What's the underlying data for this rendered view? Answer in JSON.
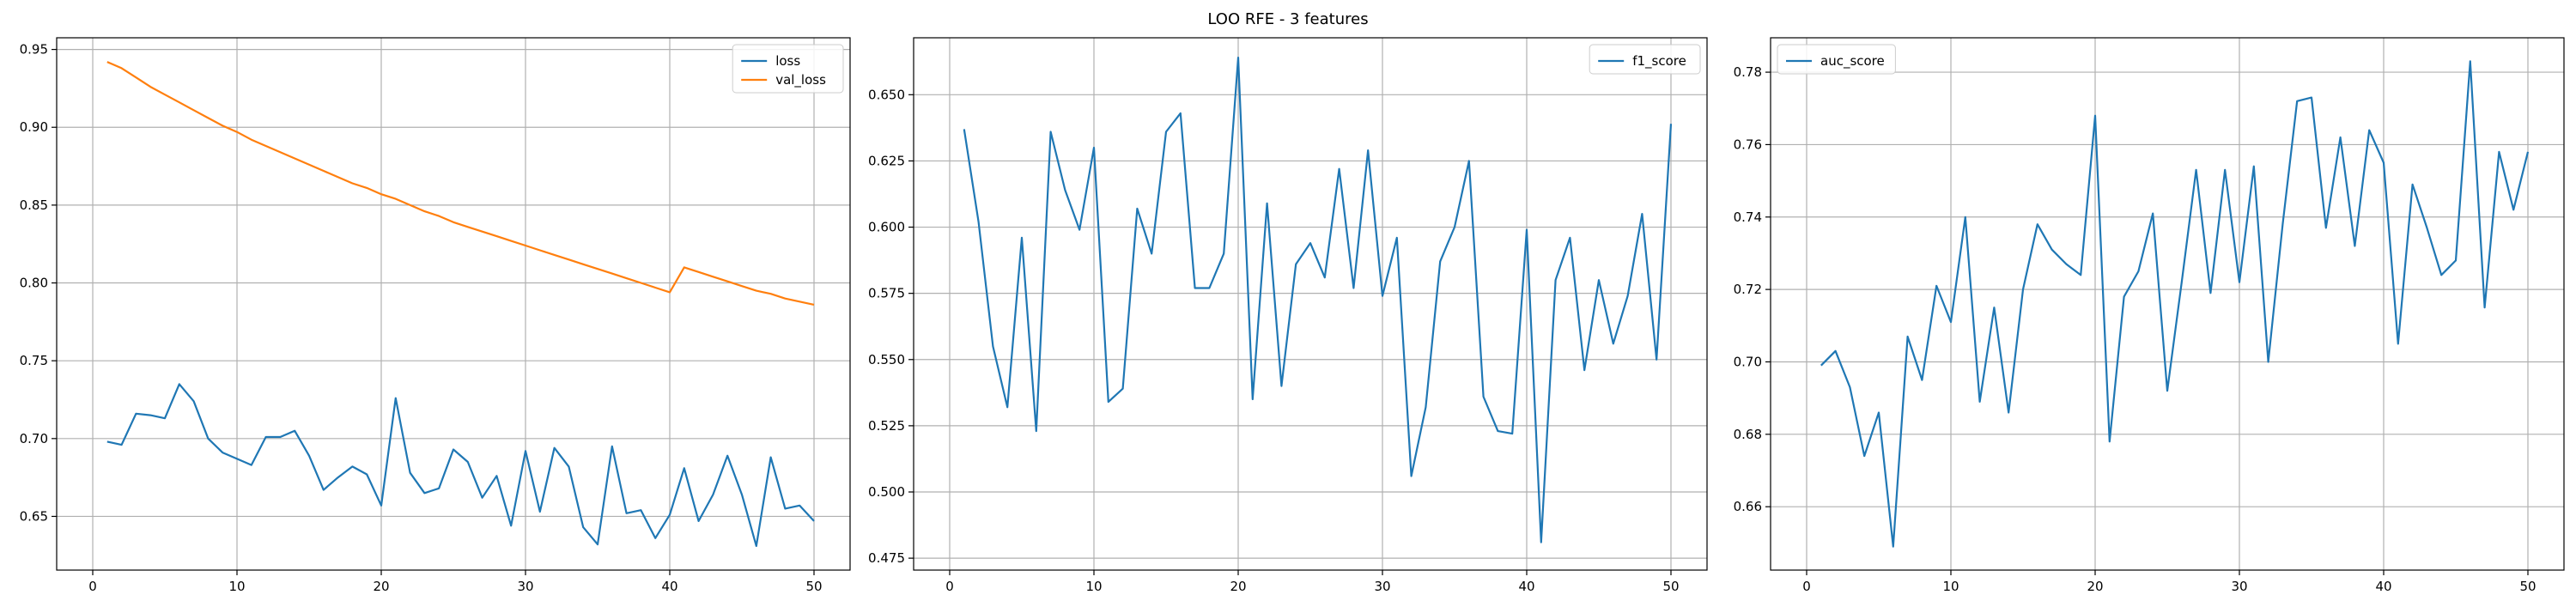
{
  "suptitle": "LOO RFE - 3 features",
  "colors": {
    "blue": "#1f77b4",
    "orange": "#ff7f0e",
    "grid": "#b0b0b0",
    "axis": "#000000"
  },
  "chart_data": [
    {
      "type": "line",
      "title": "",
      "xlabel": "",
      "ylabel": "",
      "xlim": [
        -2.5,
        52.5
      ],
      "ylim": [
        0.6155,
        0.9575
      ],
      "xticks": [
        0,
        10,
        20,
        30,
        40,
        50
      ],
      "yticks": [
        0.65,
        0.7,
        0.75,
        0.8,
        0.85,
        0.9,
        0.95
      ],
      "ytick_decimals": 2,
      "grid": true,
      "legend": "top-right",
      "x": [
        1,
        2,
        3,
        4,
        5,
        6,
        7,
        8,
        9,
        10,
        11,
        12,
        13,
        14,
        15,
        16,
        17,
        18,
        19,
        20,
        21,
        22,
        23,
        24,
        25,
        26,
        27,
        28,
        29,
        30,
        31,
        32,
        33,
        34,
        35,
        36,
        37,
        38,
        39,
        40,
        41,
        42,
        43,
        44,
        45,
        46,
        47,
        48,
        49,
        50
      ],
      "series": [
        {
          "name": "loss",
          "color": "#1f77b4",
          "values": [
            0.698,
            0.696,
            0.716,
            0.715,
            0.713,
            0.735,
            0.724,
            0.7,
            0.691,
            0.687,
            0.683,
            0.701,
            0.701,
            0.705,
            0.689,
            0.667,
            0.675,
            0.682,
            0.677,
            0.657,
            0.726,
            0.678,
            0.665,
            0.668,
            0.693,
            0.685,
            0.662,
            0.676,
            0.644,
            0.692,
            0.653,
            0.694,
            0.682,
            0.643,
            0.632,
            0.695,
            0.652,
            0.654,
            0.636,
            0.651,
            0.681,
            0.647,
            0.664,
            0.689,
            0.664,
            0.631,
            0.688,
            0.655,
            0.657,
            0.647
          ]
        },
        {
          "name": "val_loss",
          "color": "#ff7f0e",
          "values": [
            0.942,
            0.938,
            0.932,
            0.926,
            0.921,
            0.916,
            0.911,
            0.906,
            0.901,
            0.897,
            0.892,
            0.888,
            0.884,
            0.88,
            0.876,
            0.872,
            0.868,
            0.864,
            0.861,
            0.857,
            0.854,
            0.85,
            0.846,
            0.843,
            0.839,
            0.836,
            0.833,
            0.83,
            0.827,
            0.824,
            0.821,
            0.818,
            0.815,
            0.812,
            0.809,
            0.806,
            0.803,
            0.8,
            0.797,
            0.794,
            0.81,
            0.807,
            0.804,
            0.801,
            0.798,
            0.795,
            0.793,
            0.79,
            0.788,
            0.786
          ]
        }
      ]
    },
    {
      "type": "line",
      "title": "",
      "xlabel": "",
      "ylabel": "",
      "xlim": [
        -2.5,
        52.5
      ],
      "ylim": [
        0.4705,
        0.6715
      ],
      "xticks": [
        0,
        10,
        20,
        30,
        40,
        50
      ],
      "yticks": [
        0.475,
        0.5,
        0.525,
        0.55,
        0.575,
        0.6,
        0.625,
        0.65
      ],
      "ytick_decimals": 3,
      "grid": true,
      "legend": "top-right",
      "x": [
        1,
        2,
        3,
        4,
        5,
        6,
        7,
        8,
        9,
        10,
        11,
        12,
        13,
        14,
        15,
        16,
        17,
        18,
        19,
        20,
        21,
        22,
        23,
        24,
        25,
        26,
        27,
        28,
        29,
        30,
        31,
        32,
        33,
        34,
        35,
        36,
        37,
        38,
        39,
        40,
        41,
        42,
        43,
        44,
        45,
        46,
        47,
        48,
        49,
        50
      ],
      "series": [
        {
          "name": "f1_score",
          "color": "#1f77b4",
          "values": [
            0.637,
            0.602,
            0.555,
            0.532,
            0.596,
            0.523,
            0.636,
            0.614,
            0.599,
            0.63,
            0.534,
            0.539,
            0.607,
            0.59,
            0.636,
            0.643,
            0.577,
            0.577,
            0.59,
            0.664,
            0.535,
            0.609,
            0.54,
            0.586,
            0.594,
            0.581,
            0.622,
            0.577,
            0.629,
            0.574,
            0.596,
            0.506,
            0.532,
            0.587,
            0.6,
            0.625,
            0.536,
            0.523,
            0.522,
            0.599,
            0.481,
            0.58,
            0.596,
            0.546,
            0.58,
            0.556,
            0.574,
            0.605,
            0.55,
            0.639
          ]
        }
      ]
    },
    {
      "type": "line",
      "title": "",
      "xlabel": "",
      "ylabel": "",
      "xlim": [
        -2.5,
        52.5
      ],
      "ylim": [
        0.6425,
        0.7895
      ],
      "xticks": [
        0,
        10,
        20,
        30,
        40,
        50
      ],
      "yticks": [
        0.66,
        0.68,
        0.7,
        0.72,
        0.74,
        0.76,
        0.78
      ],
      "ytick_decimals": 2,
      "grid": true,
      "legend": "top-left",
      "x": [
        1,
        2,
        3,
        4,
        5,
        6,
        7,
        8,
        9,
        10,
        11,
        12,
        13,
        14,
        15,
        16,
        17,
        18,
        19,
        20,
        21,
        22,
        23,
        24,
        25,
        26,
        27,
        28,
        29,
        30,
        31,
        32,
        33,
        34,
        35,
        36,
        37,
        38,
        39,
        40,
        41,
        42,
        43,
        44,
        45,
        46,
        47,
        48,
        49,
        50
      ],
      "series": [
        {
          "name": "auc_score",
          "color": "#1f77b4",
          "values": [
            0.699,
            0.703,
            0.693,
            0.674,
            0.686,
            0.649,
            0.707,
            0.695,
            0.721,
            0.711,
            0.74,
            0.689,
            0.715,
            0.686,
            0.72,
            0.738,
            0.731,
            0.727,
            0.724,
            0.768,
            0.678,
            0.718,
            0.725,
            0.741,
            0.692,
            0.722,
            0.753,
            0.719,
            0.753,
            0.722,
            0.754,
            0.7,
            0.738,
            0.772,
            0.773,
            0.737,
            0.762,
            0.732,
            0.764,
            0.755,
            0.705,
            0.749,
            0.737,
            0.724,
            0.728,
            0.783,
            0.715,
            0.758,
            0.742,
            0.758
          ]
        }
      ]
    }
  ]
}
